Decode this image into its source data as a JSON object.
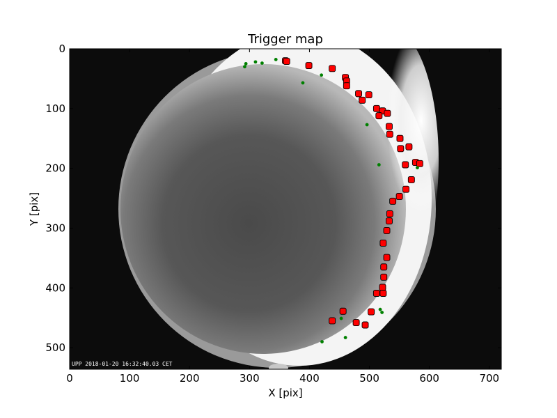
{
  "chart_data": {
    "type": "scatter",
    "title": "Trigger map",
    "xlabel": "X [pix]",
    "ylabel": "Y [pix]",
    "xlim": [
      0,
      720
    ],
    "ylim": [
      536,
      0
    ],
    "xticks": [
      0,
      100,
      200,
      300,
      400,
      500,
      600,
      700
    ],
    "yticks": [
      0,
      100,
      200,
      300,
      400,
      500
    ],
    "grid": false,
    "legend": "none",
    "background": "all-sky camera image (grayscale fisheye)",
    "timestamp": "UPP 2018-01-20 16:32:40.03 CET",
    "series": [
      {
        "marker": "square",
        "color": "#ff0000",
        "points": [
          [
            360,
            20
          ],
          [
            362,
            21
          ],
          [
            399,
            28
          ],
          [
            438,
            33
          ],
          [
            460,
            48
          ],
          [
            462,
            54
          ],
          [
            462,
            62
          ],
          [
            482,
            75
          ],
          [
            499,
            77
          ],
          [
            488,
            86
          ],
          [
            512,
            100
          ],
          [
            522,
            104
          ],
          [
            530,
            108
          ],
          [
            516,
            112
          ],
          [
            533,
            130
          ],
          [
            534,
            143
          ],
          [
            551,
            150
          ],
          [
            566,
            164
          ],
          [
            552,
            167
          ],
          [
            577,
            190
          ],
          [
            584,
            192
          ],
          [
            560,
            194
          ],
          [
            570,
            219
          ],
          [
            561,
            235
          ],
          [
            550,
            247
          ],
          [
            539,
            255
          ],
          [
            534,
            276
          ],
          [
            533,
            288
          ],
          [
            529,
            304
          ],
          [
            523,
            325
          ],
          [
            529,
            349
          ],
          [
            524,
            365
          ],
          [
            524,
            382
          ],
          [
            522,
            399
          ],
          [
            512,
            409
          ],
          [
            523,
            409
          ],
          [
            456,
            439
          ],
          [
            503,
            440
          ],
          [
            438,
            455
          ],
          [
            478,
            458
          ],
          [
            493,
            462
          ]
        ]
      },
      {
        "marker": "dot",
        "color": "#008000",
        "points": [
          [
            294,
            25
          ],
          [
            292,
            30
          ],
          [
            310,
            22
          ],
          [
            321,
            24
          ],
          [
            344,
            18
          ],
          [
            420,
            44
          ],
          [
            389,
            57
          ],
          [
            496,
            127
          ],
          [
            516,
            194
          ],
          [
            580,
            199
          ],
          [
            518,
            436
          ],
          [
            521,
            441
          ],
          [
            453,
            451
          ],
          [
            460,
            483
          ],
          [
            421,
            490
          ]
        ]
      }
    ]
  }
}
